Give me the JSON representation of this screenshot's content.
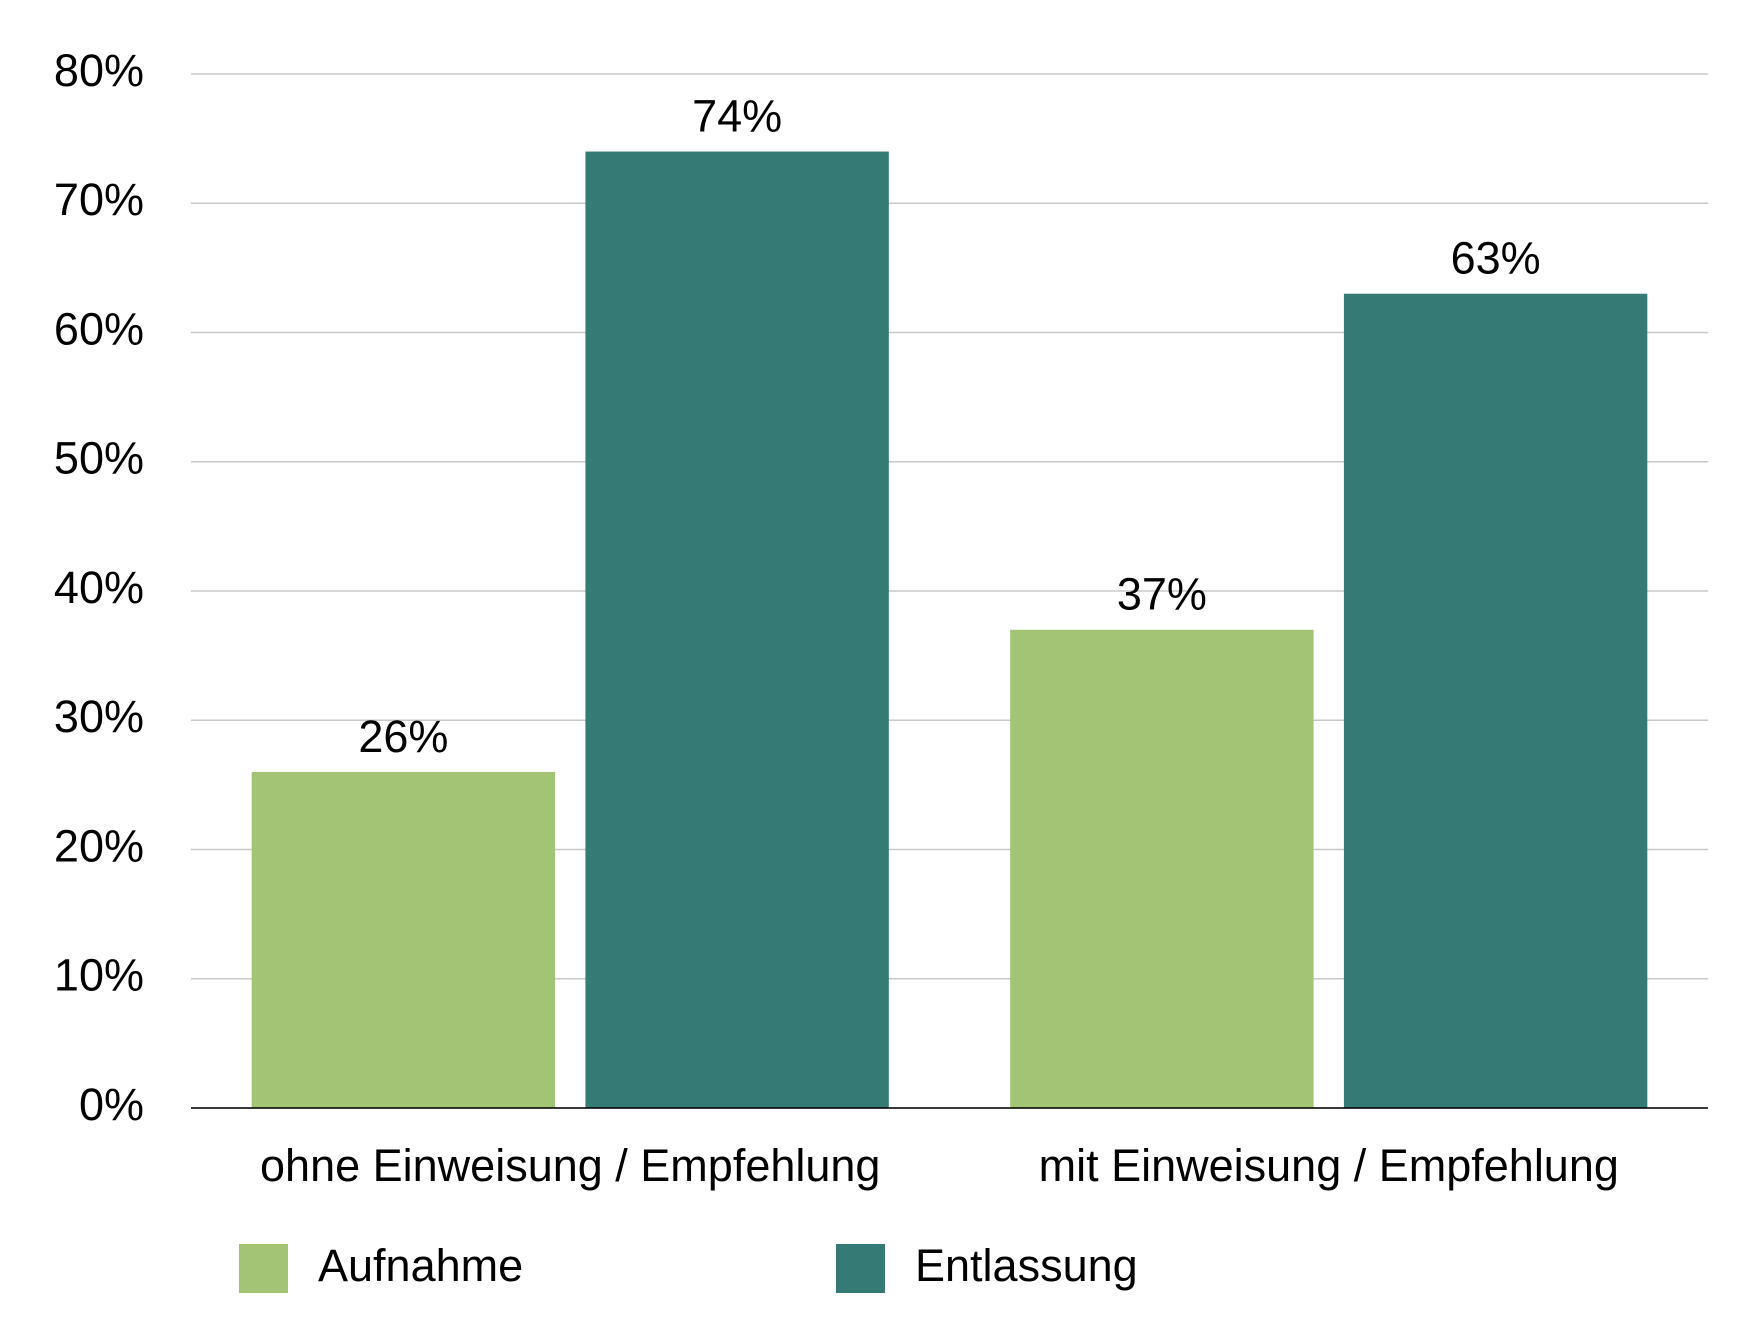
{
  "chart_data": {
    "type": "bar",
    "categories": [
      "ohne Einweisung / Empfehlung",
      "mit Einweisung / Empfehlung"
    ],
    "series": [
      {
        "name": "Aufnahme",
        "color": "#a2c474",
        "values": [
          26,
          37
        ],
        "value_labels": [
          "26%",
          "37%"
        ]
      },
      {
        "name": "Entlassung",
        "color": "#367a75",
        "values": [
          74,
          63
        ],
        "value_labels": [
          "74%",
          "63%"
        ]
      }
    ],
    "ylim": [
      0,
      80
    ],
    "yticks": [
      {
        "value": 0,
        "label": "0%"
      },
      {
        "value": 10,
        "label": "10%"
      },
      {
        "value": 20,
        "label": "20%"
      },
      {
        "value": 30,
        "label": "30%"
      },
      {
        "value": 40,
        "label": "40%"
      },
      {
        "value": 50,
        "label": "50%"
      },
      {
        "value": 60,
        "label": "60%"
      },
      {
        "value": 70,
        "label": "70%"
      },
      {
        "value": 80,
        "label": "80%"
      }
    ],
    "grid": true
  }
}
